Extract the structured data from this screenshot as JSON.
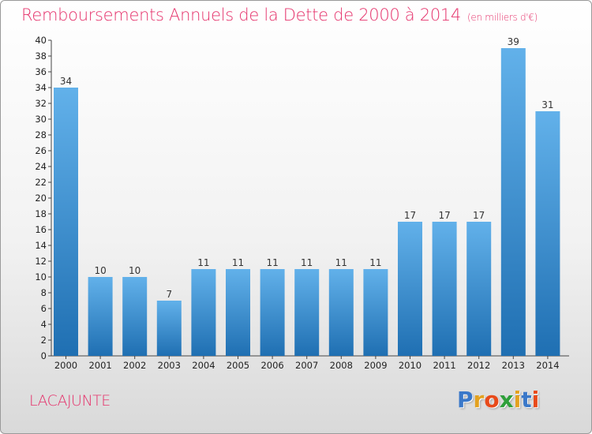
{
  "title": "Remboursements Annuels de la Dette de 2000 à 2014",
  "unit": "(en milliers d'€)",
  "commune": "LACAJUNTE",
  "logo": {
    "text": "Proxiti",
    "letters": [
      "P",
      "r",
      "o",
      "x",
      "i",
      "t",
      "i"
    ],
    "colors": [
      "#3a78c9",
      "#e3a11f",
      "#e84a1a",
      "#2e9f3a",
      "#e3a11f",
      "#3a78c9",
      "#e84a1a"
    ]
  },
  "colors": {
    "accent": "#e5326b",
    "bar_light": "#62b1ea",
    "bar_dark": "#1f6fb2"
  },
  "chart_data": {
    "type": "bar",
    "categories": [
      "2000",
      "2001",
      "2002",
      "2003",
      "2004",
      "2005",
      "2006",
      "2007",
      "2008",
      "2009",
      "2010",
      "2011",
      "2012",
      "2013",
      "2014"
    ],
    "values": [
      34,
      10,
      10,
      7,
      11,
      11,
      11,
      11,
      11,
      11,
      17,
      17,
      17,
      39,
      31
    ],
    "title": "Remboursements Annuels de la Dette de 2000 à 2014",
    "xlabel": "",
    "ylabel": "",
    "ylim": [
      0,
      40
    ],
    "ytick_step": 2,
    "grid": false,
    "data_labels": true
  }
}
